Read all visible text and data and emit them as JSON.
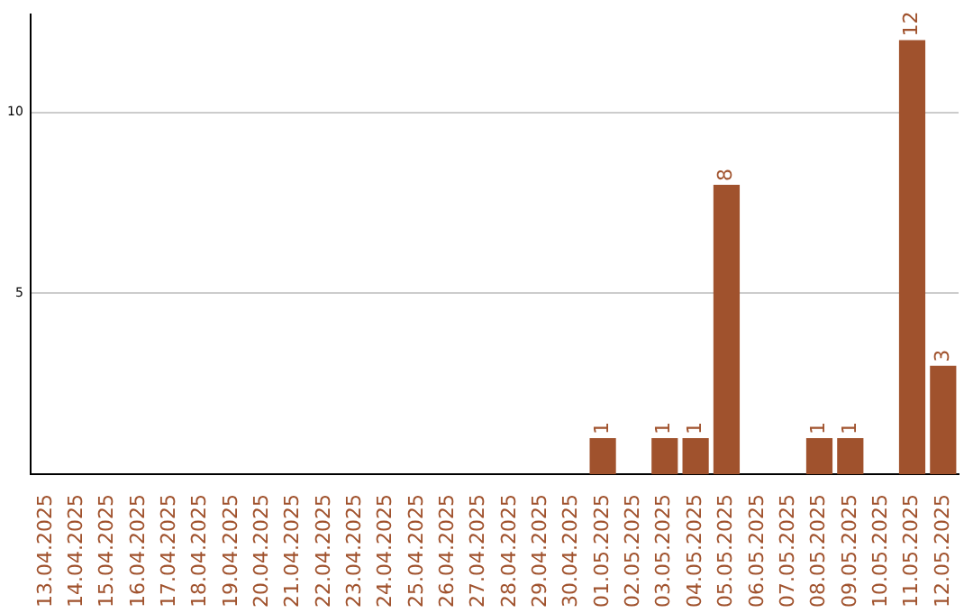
{
  "chart_data": {
    "type": "bar",
    "categories": [
      "13.04.2025",
      "14.04.2025",
      "15.04.2025",
      "16.04.2025",
      "17.04.2025",
      "18.04.2025",
      "19.04.2025",
      "20.04.2025",
      "21.04.2025",
      "22.04.2025",
      "23.04.2025",
      "24.04.2025",
      "25.04.2025",
      "26.04.2025",
      "27.04.2025",
      "28.04.2025",
      "29.04.2025",
      "30.04.2025",
      "01.05.2025",
      "02.05.2025",
      "03.05.2025",
      "04.05.2025",
      "05.05.2025",
      "06.05.2025",
      "07.05.2025",
      "08.05.2025",
      "09.05.2025",
      "10.05.2025",
      "11.05.2025",
      "12.05.2025"
    ],
    "values": [
      0,
      0,
      0,
      0,
      0,
      0,
      0,
      0,
      0,
      0,
      0,
      0,
      0,
      0,
      0,
      0,
      0,
      0,
      1,
      0,
      1,
      1,
      8,
      0,
      0,
      1,
      1,
      0,
      12,
      3
    ],
    "value_labels": [
      null,
      null,
      null,
      null,
      null,
      null,
      null,
      null,
      null,
      null,
      null,
      null,
      null,
      null,
      null,
      null,
      null,
      null,
      "1",
      null,
      "1",
      "1",
      "8",
      null,
      null,
      "1",
      "1",
      null,
      "12",
      "3"
    ],
    "color": "#a0522d",
    "ylim": [
      0,
      12.7
    ],
    "yticks": [
      5,
      10
    ],
    "grid": "y",
    "legend": false
  }
}
